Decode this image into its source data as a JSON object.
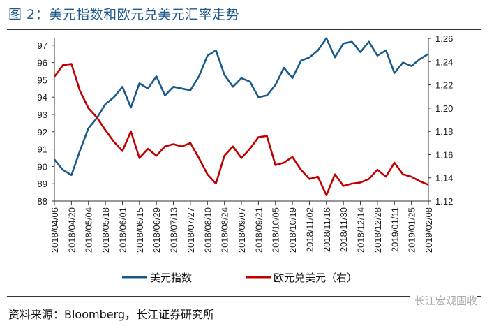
{
  "title": "图 2：美元指数和欧元兑美元汇率走势",
  "source": "资料来源：Bloomberg，长江证券研究所",
  "watermark": "长江宏观固收",
  "chart_data": {
    "type": "line",
    "x_tick_labels": [
      "2018/04/06",
      "2018/04/20",
      "2018/05/04",
      "2018/05/18",
      "2018/06/01",
      "2018/06/15",
      "2018/06/29",
      "2018/07/13",
      "2018/07/27",
      "2018/08/10",
      "2018/08/24",
      "2018/09/07",
      "2018/09/21",
      "2018/10/05",
      "2018/10/19",
      "2018/11/02",
      "2018/11/16",
      "2018/11/30",
      "2018/12/14",
      "2018/12/28",
      "2019/01/11",
      "2019/01/25",
      "2019/02/08"
    ],
    "x": [
      "2018/04/06",
      "2018/04/13",
      "2018/04/20",
      "2018/04/27",
      "2018/05/04",
      "2018/05/11",
      "2018/05/18",
      "2018/05/25",
      "2018/06/01",
      "2018/06/08",
      "2018/06/15",
      "2018/06/22",
      "2018/06/29",
      "2018/07/06",
      "2018/07/13",
      "2018/07/20",
      "2018/07/27",
      "2018/08/03",
      "2018/08/10",
      "2018/08/17",
      "2018/08/24",
      "2018/08/31",
      "2018/09/07",
      "2018/09/14",
      "2018/09/21",
      "2018/09/28",
      "2018/10/05",
      "2018/10/12",
      "2018/10/19",
      "2018/10/26",
      "2018/11/02",
      "2018/11/09",
      "2018/11/16",
      "2018/11/23",
      "2018/11/30",
      "2018/12/07",
      "2018/12/14",
      "2018/12/21",
      "2018/12/28",
      "2019/01/04",
      "2019/01/11",
      "2019/01/18",
      "2019/01/25",
      "2019/02/01",
      "2019/02/08"
    ],
    "left_axis": {
      "ylim": [
        88,
        97
      ],
      "ticks": [
        88,
        89,
        90,
        91,
        92,
        93,
        94,
        95,
        96,
        97
      ]
    },
    "right_axis": {
      "ylim": [
        1.12,
        1.26
      ],
      "ticks": [
        "1.12",
        "1.14",
        "1.16",
        "1.18",
        "1.20",
        "1.22",
        "1.24",
        "1.26"
      ]
    },
    "series": [
      {
        "name": "美元指数",
        "axis": "left",
        "color": "#1a5a8a",
        "values": [
          90.4,
          89.8,
          89.5,
          90.9,
          92.2,
          92.8,
          93.6,
          94.0,
          94.6,
          93.4,
          94.8,
          94.5,
          95.2,
          94.1,
          94.6,
          94.5,
          94.4,
          95.2,
          96.4,
          96.7,
          95.3,
          94.6,
          95.1,
          94.9,
          94.0,
          94.1,
          94.7,
          95.7,
          95.1,
          96.1,
          96.3,
          96.7,
          97.4,
          96.3,
          97.1,
          97.2,
          96.6,
          97.2,
          96.4,
          96.7,
          95.4,
          96.0,
          95.8,
          96.2,
          96.5
        ]
      },
      {
        "name": "欧元兑美元（右）",
        "axis": "right",
        "color": "#c00000",
        "values": [
          1.227,
          1.237,
          1.238,
          1.215,
          1.2,
          1.192,
          1.181,
          1.171,
          1.163,
          1.18,
          1.157,
          1.165,
          1.159,
          1.167,
          1.169,
          1.167,
          1.17,
          1.157,
          1.143,
          1.135,
          1.159,
          1.167,
          1.157,
          1.165,
          1.175,
          1.176,
          1.151,
          1.153,
          1.158,
          1.147,
          1.139,
          1.141,
          1.125,
          1.143,
          1.133,
          1.135,
          1.136,
          1.139,
          1.147,
          1.141,
          1.153,
          1.143,
          1.141,
          1.137,
          1.134
        ]
      }
    ],
    "legend_position": "bottom",
    "grid": false
  }
}
